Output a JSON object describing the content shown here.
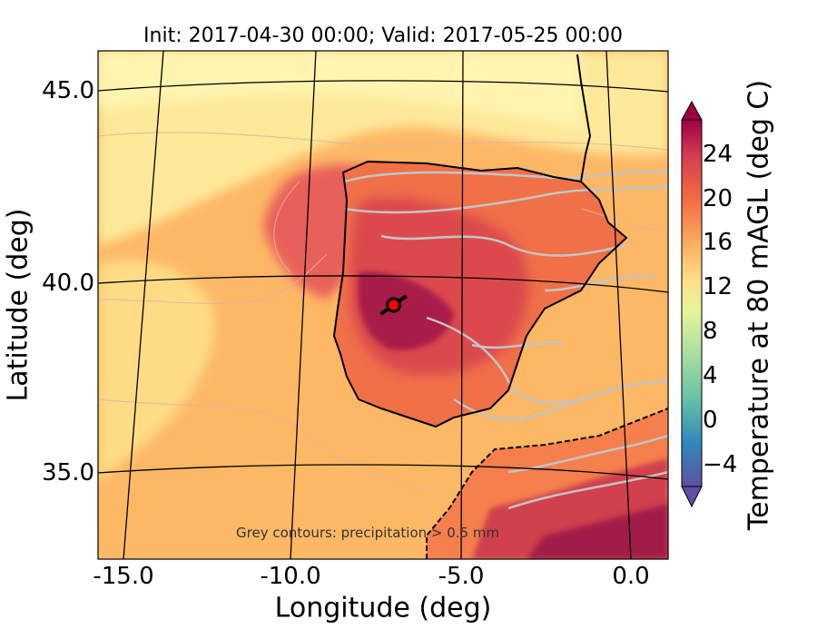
{
  "title": "Init: 2017-04-30 00:00; Valid: 2017-05-25 00:00",
  "axes": {
    "xlabel": "Longitude (deg)",
    "ylabel": "Latitude (deg)",
    "xticks": [
      "-15.0",
      "-10.0",
      "-5.0",
      "0.0"
    ],
    "yticks": [
      "45.0",
      "40.0",
      "35.0"
    ],
    "xlim": [
      -16.0,
      0.2
    ],
    "ylim": [
      32.8,
      46.0
    ]
  },
  "colorbar": {
    "label": "Temperature at 80 mAGL (deg C)",
    "ticks": [
      "24",
      "20",
      "16",
      "12",
      "8",
      "4",
      "0",
      "−4"
    ],
    "range": [
      -6,
      28
    ],
    "extend": "both",
    "colormap": "Spectral_r"
  },
  "annotation": "Grey contours: precipitation  > 0.5 mm",
  "marker": {
    "name": "location marker",
    "lon": -7.6,
    "lat": 39.4,
    "color": "#ff0000"
  },
  "colors": {
    "ocean_warm": "#fdb866",
    "ocean_cool": "#fee99a",
    "land_hot": "#d63c4e",
    "land_hottest": "#9e1a47",
    "precip_contour": "#c0c0c0",
    "coastline": "#000000"
  }
}
